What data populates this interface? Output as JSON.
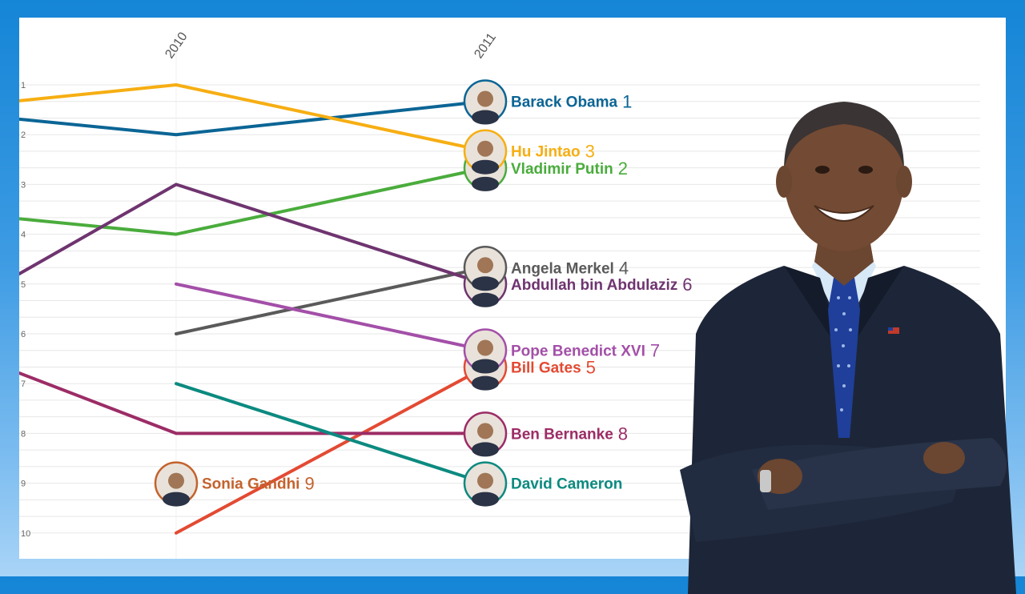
{
  "chart_data": {
    "type": "line",
    "title": "",
    "xlabel": "",
    "ylabel": "",
    "x": [
      "2010",
      "2011"
    ],
    "y_ticks": [
      "1",
      "2",
      "3",
      "4",
      "5",
      "6",
      "7",
      "8",
      "9",
      "10"
    ],
    "ylim": [
      1,
      10
    ],
    "y_inverted": true,
    "grid": "horizontal",
    "legend": "none",
    "series": [
      {
        "name": "Barack Obama",
        "rank_label": "1",
        "color": "#0b6595",
        "icon": "barack-obama-portrait",
        "values": [
          2,
          1.33
        ]
      },
      {
        "name": "Hu Jintao",
        "rank_label": "3",
        "color": "#f6ae12",
        "icon": "hu-jintao-portrait",
        "values": [
          1,
          2.33
        ]
      },
      {
        "name": "Vladimir Putin",
        "rank_label": "2",
        "color": "#4aac3c",
        "icon": "vladimir-putin-portrait",
        "values": [
          4,
          2.67
        ]
      },
      {
        "name": "Angela Merkel",
        "rank_label": "4",
        "color": "#5a5a5a",
        "icon": "angela-merkel-portrait",
        "values": [
          6,
          4.67
        ]
      },
      {
        "name": "Abdullah bin Abdulaziz",
        "rank_label": "6",
        "color": "#6f3470",
        "icon": "abdullah-portrait",
        "values": [
          3,
          5
        ]
      },
      {
        "name": "Pope Benedict XVI",
        "rank_label": "7",
        "color": "#a34fa8",
        "icon": "pope-benedict-portrait",
        "values": [
          5,
          6.33
        ]
      },
      {
        "name": "Bill Gates",
        "rank_label": "5",
        "color": "#e34a33",
        "icon": "bill-gates-portrait",
        "values": [
          10,
          6.67
        ]
      },
      {
        "name": "Ben Bernanke",
        "rank_label": "8",
        "color": "#9c2c66",
        "icon": "ben-bernanke-portrait",
        "values": [
          8,
          8
        ]
      },
      {
        "name": "David Cameron",
        "rank_label": "",
        "color": "#0c8a80",
        "icon": "david-cameron-portrait",
        "values": [
          7,
          9
        ]
      },
      {
        "name": "Sonia Gandhi",
        "rank_label": "9",
        "color": "#c4622d",
        "icon": "sonia-gandhi-portrait",
        "values": [
          9,
          null
        ]
      }
    ]
  },
  "person_image": {
    "icon": "barack-obama-cutout"
  }
}
